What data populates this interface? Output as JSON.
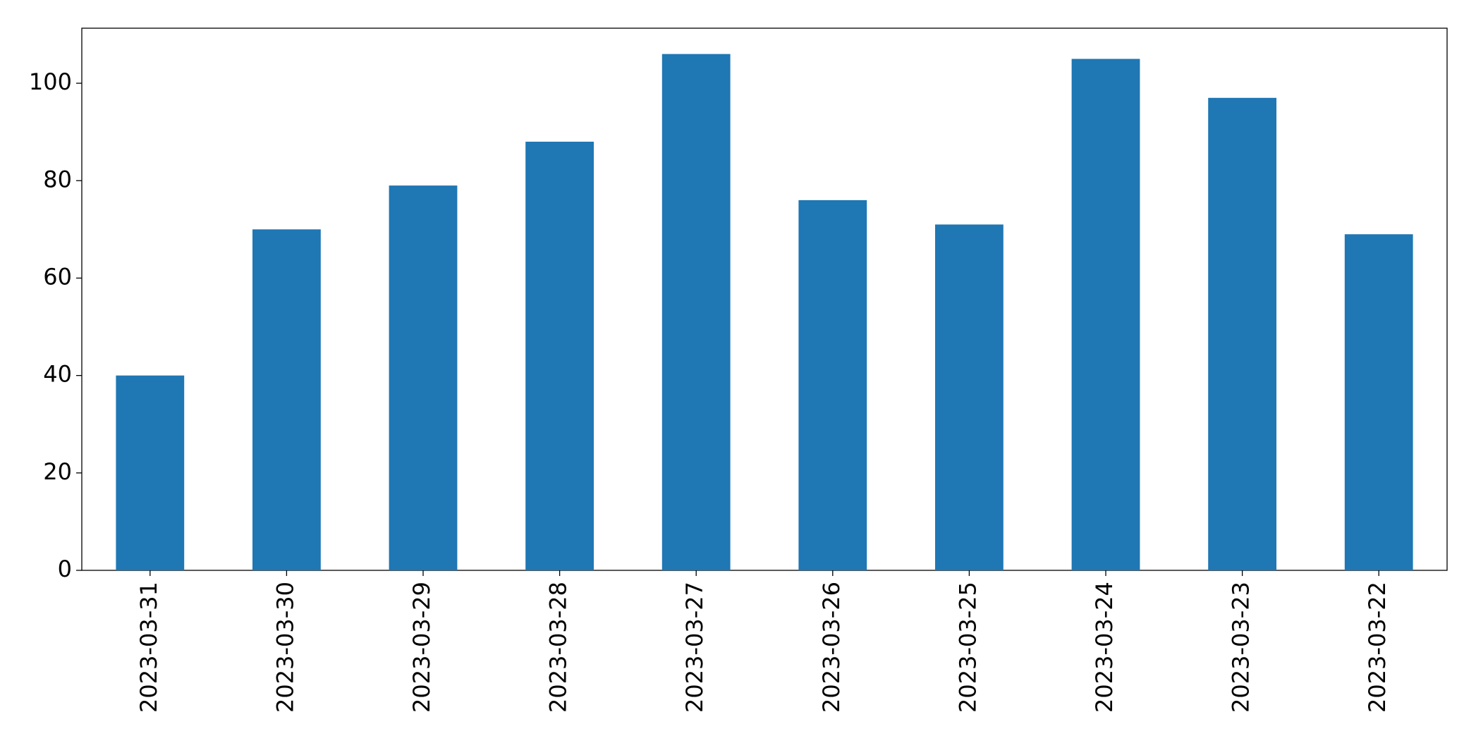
{
  "chart_data": {
    "type": "bar",
    "categories": [
      "2023-03-31",
      "2023-03-30",
      "2023-03-29",
      "2023-03-28",
      "2023-03-27",
      "2023-03-26",
      "2023-03-25",
      "2023-03-24",
      "2023-03-23",
      "2023-03-22"
    ],
    "values": [
      40,
      70,
      79,
      88,
      106,
      76,
      71,
      105,
      97,
      69
    ],
    "color": "#1f77b4",
    "ylim": [
      0,
      111.3
    ],
    "yticks": [
      0,
      20,
      40,
      60,
      80,
      100
    ],
    "grid": false
  }
}
